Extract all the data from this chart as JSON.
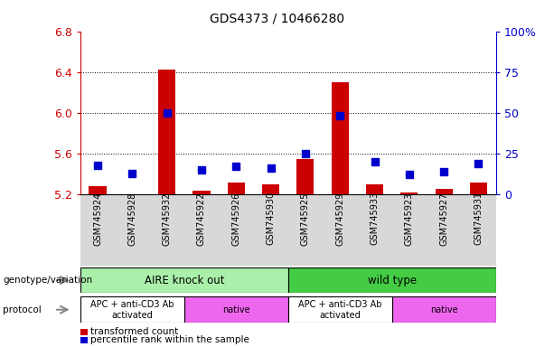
{
  "title": "GDS4373 / 10466280",
  "samples": [
    "GSM745924",
    "GSM745928",
    "GSM745932",
    "GSM745922",
    "GSM745926",
    "GSM745930",
    "GSM745925",
    "GSM745929",
    "GSM745933",
    "GSM745923",
    "GSM745927",
    "GSM745931"
  ],
  "red_values": [
    5.28,
    5.2,
    6.42,
    5.24,
    5.32,
    5.3,
    5.55,
    6.3,
    5.3,
    5.22,
    5.25,
    5.32
  ],
  "blue_percentiles": [
    18,
    13,
    50,
    15,
    17,
    16,
    25,
    48,
    20,
    12,
    14,
    19
  ],
  "ylim_left": [
    5.2,
    6.8
  ],
  "ylim_right": [
    0,
    100
  ],
  "left_ticks": [
    5.2,
    5.6,
    6.0,
    6.4,
    6.8
  ],
  "right_ticks": [
    0,
    25,
    50,
    75,
    100
  ],
  "right_tick_labels": [
    "0",
    "25",
    "50",
    "75",
    "100%"
  ],
  "bar_color": "#cc0000",
  "dot_color": "#0000cc",
  "bar_baseline": 5.2,
  "dot_size": 35,
  "genotype_groups": [
    {
      "label": "AIRE knock out",
      "start": 0,
      "end": 6,
      "color": "#aaf0aa"
    },
    {
      "label": "wild type",
      "start": 6,
      "end": 12,
      "color": "#44cc44"
    }
  ],
  "protocol_groups": [
    {
      "label": "APC + anti-CD3 Ab\nactivated",
      "start": 0,
      "end": 3,
      "color": "#ffffff"
    },
    {
      "label": "native",
      "start": 3,
      "end": 6,
      "color": "#ee66ee"
    },
    {
      "label": "APC + anti-CD3 Ab\nactivated",
      "start": 6,
      "end": 9,
      "color": "#ffffff"
    },
    {
      "label": "native",
      "start": 9,
      "end": 12,
      "color": "#ee66ee"
    }
  ],
  "legend_red_label": "transformed count",
  "legend_blue_label": "percentile rank within the sample",
  "genotype_label": "genotype/variation",
  "protocol_label": "protocol",
  "left_axis_color": "#cc0000",
  "right_axis_color": "#0000cc",
  "background_color": "#ffffff",
  "tick_area_bg": "#d8d8d8",
  "grid_lines": [
    5.6,
    6.0,
    6.4
  ],
  "bar_width": 0.5
}
